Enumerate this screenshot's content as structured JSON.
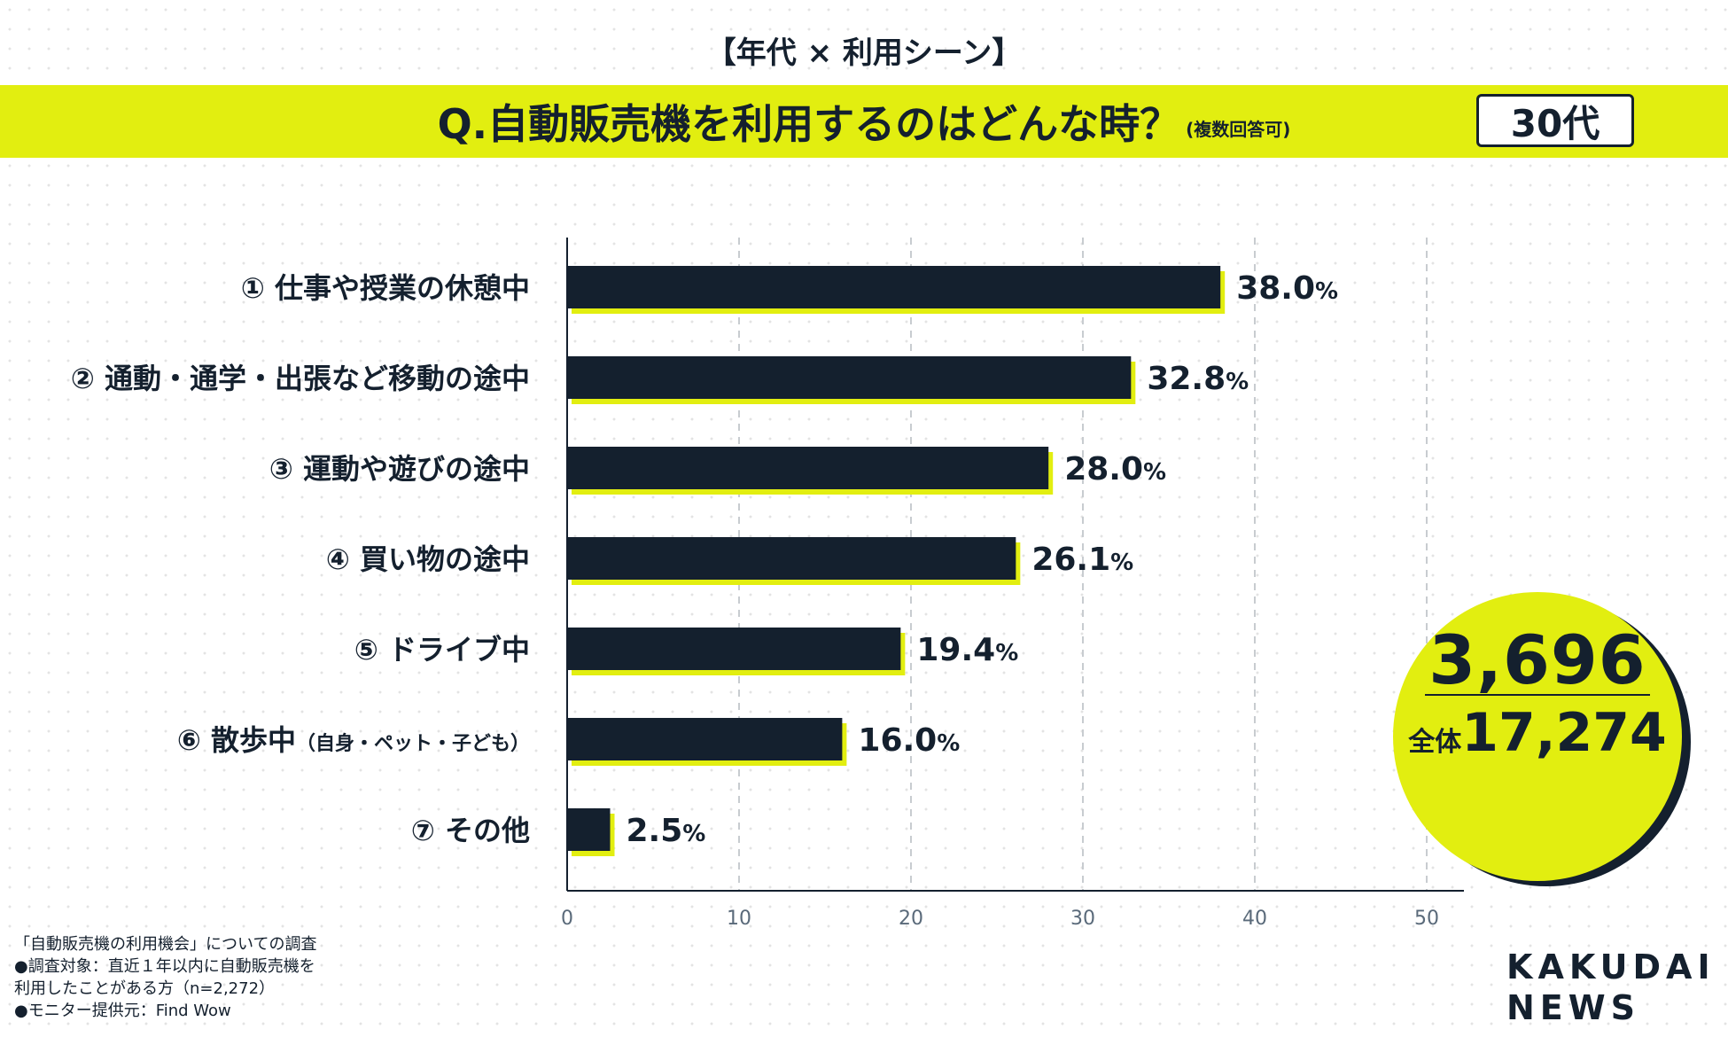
{
  "header": {
    "subtitle": "【年代 × 利用シーン】",
    "question": "Q.自動販売機を利用するのはどんな時？",
    "question_note": "(複数回答可)",
    "age_group": "30代"
  },
  "colors": {
    "accent": "#e2ee10",
    "bar": "#14202e",
    "text": "#14202e",
    "grid": "#c8ccd0"
  },
  "chart_data": {
    "type": "bar",
    "orientation": "horizontal",
    "categories": [
      "① 仕事や授業の休憩中",
      "② 通動・通学・出張など移動の途中",
      "③ 運動や遊びの途中",
      "④ 買い物の途中",
      "⑤ ドライブ中",
      "⑥ 散歩中",
      "⑦ その他"
    ],
    "category_notes": [
      "",
      "",
      "",
      "",
      "",
      "（自身・ペット・子ども）",
      ""
    ],
    "values": [
      38.0,
      32.8,
      28.0,
      26.1,
      19.4,
      16.0,
      2.5
    ],
    "value_labels": [
      "38.0",
      "32.8",
      "28.0",
      "26.1",
      "19.4",
      "16.0",
      "2.5"
    ],
    "unit": "%",
    "xlim": [
      0,
      50
    ],
    "xticks": [
      0,
      10,
      20,
      30,
      40,
      50
    ],
    "grid": true
  },
  "respondents": {
    "count": "3,696",
    "total_label": "全体",
    "total": "17,274"
  },
  "footnote": {
    "line1": "「自動販売機の利用機会」についての調査",
    "line2": "●調査対象：直近１年以内に自動販売機を",
    "line3": "利用したことがある方（n=2,272）",
    "line4": "●モニター提供元：Find Wow"
  },
  "logo": {
    "line1": "KAKUDAI",
    "line2": "NEWS"
  }
}
